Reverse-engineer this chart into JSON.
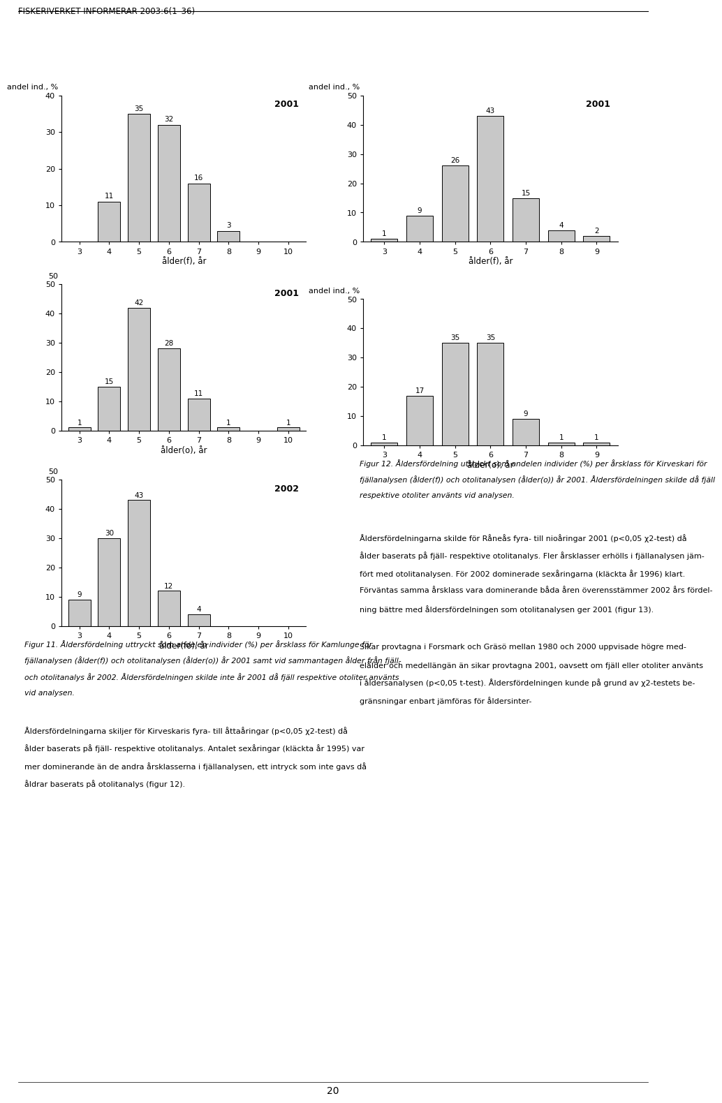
{
  "header": "FISKERIVERKET INFORMERAR 2003:6(1–36)",
  "bar_color": "#c8c8c8",
  "bar_edgecolor": "#000000",
  "ylabel": "andel ind., %",
  "charts_left": [
    {
      "year": "2001",
      "xlabel": "ålder(f), år",
      "ages": [
        3,
        4,
        5,
        6,
        7,
        8,
        9,
        10
      ],
      "values": [
        0,
        11,
        35,
        32,
        16,
        3,
        0,
        0
      ],
      "ylim": [
        0,
        40
      ],
      "yticks": [
        0,
        10,
        20,
        30,
        40
      ],
      "ylabel_val": "40"
    },
    {
      "year": "2001",
      "xlabel": "ålder(o), år",
      "ages": [
        3,
        4,
        5,
        6,
        7,
        8,
        9,
        10
      ],
      "values": [
        1,
        15,
        42,
        28,
        11,
        1,
        0,
        1
      ],
      "ylim": [
        0,
        50
      ],
      "yticks": [
        0,
        10,
        20,
        30,
        40,
        50
      ],
      "ylabel_val": "50"
    },
    {
      "year": "2002",
      "xlabel": "ålder(fo), år",
      "ages": [
        3,
        4,
        5,
        6,
        7,
        8,
        9,
        10
      ],
      "values": [
        9,
        30,
        43,
        12,
        4,
        0,
        0,
        0
      ],
      "ylim": [
        0,
        50
      ],
      "yticks": [
        0,
        10,
        20,
        30,
        40,
        50
      ],
      "ylabel_val": "50"
    }
  ],
  "charts_right": [
    {
      "year": "2001",
      "xlabel": "ålder(f), år",
      "ages": [
        3,
        4,
        5,
        6,
        7,
        8,
        9
      ],
      "values": [
        1,
        9,
        26,
        43,
        15,
        4,
        2
      ],
      "ylim": [
        0,
        50
      ],
      "yticks": [
        0,
        10,
        20,
        30,
        40,
        50
      ],
      "ylabel_label": "andel ind., %"
    },
    {
      "year": "",
      "xlabel": "ålder(o), år",
      "ages": [
        3,
        4,
        5,
        6,
        7,
        8,
        9
      ],
      "values": [
        1,
        17,
        35,
        35,
        9,
        1,
        1
      ],
      "ylim": [
        0,
        50
      ],
      "yticks": [
        0,
        10,
        20,
        30,
        40,
        50
      ],
      "ylabel_label": "andel ind., %"
    }
  ],
  "cap11_lines": [
    "Figur 11. Åldersfördelning uttryckt som andelen individer (%) per årsklass för Kamlunge för",
    "fjällanalysen (ålder(f)) och otolitanalysen (ålder(o)) år 2001 samt vid sammantagen ålder från fjäll-",
    "och otolitanalys år 2002. Åldersfördelningen skilde inte år 2001 då fjäll respektive otoliter använts",
    "vid analysen."
  ],
  "cap12_lines": [
    "Figur 12. Åldersfördelning uttryckt som andelen individer (%) per årsklass för Kirveskari för",
    "fjällanalysen (ålder(f)) och otolitanalysen (ålder(o)) år 2001. Åldersfördelningen skilde då fjäll",
    "respektive otoliter använts vid analysen."
  ],
  "body1_lines": [
    "Åldersfördelningarna skiljer för Kirveskaris fyra- till åttaåringar (p<0,05 χ2-test) då",
    "ålder baserats på fjäll- respektive otolitanalys. Antalet sexåringar (kläckta år 1995) var",
    "mer dominerande än de andra årsklasserna i fjällanalysen, ett intryck som inte gavs då",
    "åldrar baserats på otolitanalys (figur 12)."
  ],
  "body2_lines": [
    "Åldersfördelningarna skilde för Råneås fyra- till nioåringar 2001 (p<0,05 χ2-test) då",
    "ålder baserats på fjäll- respektive otolitanalys. Fler årsklasser erhölls i fjällanalysen jäm-",
    "fört med otolitanalysen. För 2002 dominerade sexåringarna (kläckta år 1996) klart.",
    "Förväntas samma årsklass vara dominerande båda åren överensstämmer 2002 års fördel-",
    "ning bättre med åldersfördelningen som otolitanalysen ger 2001 (figur 13)."
  ],
  "body3_lines": [
    "Sikar provtagna i Forsmark och Gräsö mellan 1980 och 2000 uppvisade högre med-",
    "elålder och medellängän än sikar provtagna 2001, oavsett om fjäll eller otoliter använts",
    "i åldersanalysen (p<0,05 t-test). Åldersfördelningen kunde på grund av χ2-testets be-",
    "gränsningar enbart jämföras för åldersinter-"
  ],
  "page_number": "20"
}
